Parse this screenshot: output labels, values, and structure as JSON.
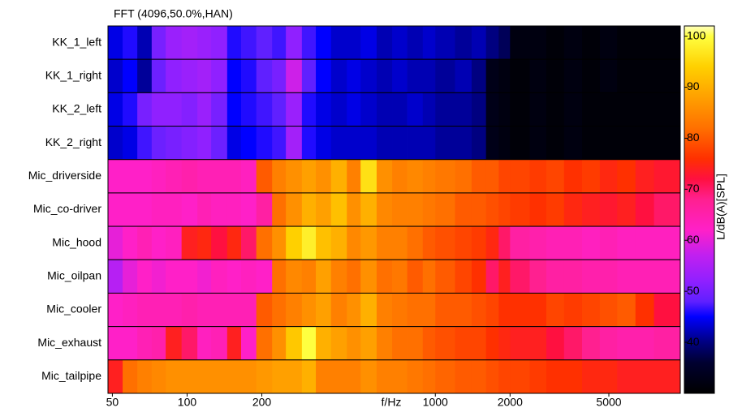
{
  "chart_data": {
    "type": "heatmap",
    "title": "FFT (4096,50.0%,HAN)",
    "x_label": "f/Hz",
    "colorbar_label": "L/dB(A)[SPL]",
    "log_x": true,
    "xlim": [
      48,
      9700
    ],
    "xticks": [
      50,
      100,
      200,
      1000,
      2000,
      5000
    ],
    "x_edges": [
      48,
      55,
      63,
      72,
      82,
      95,
      110,
      125,
      145,
      165,
      190,
      220,
      250,
      290,
      330,
      380,
      440,
      500,
      580,
      670,
      770,
      890,
      1000,
      1200,
      1400,
      1600,
      1800,
      2000,
      2400,
      2800,
      3300,
      3900,
      4600,
      5400,
      6400,
      7600,
      9700
    ],
    "clim": [
      30,
      102
    ],
    "cticks": [
      40,
      50,
      60,
      70,
      80,
      90,
      100
    ],
    "colormap": [
      {
        "value": 30,
        "color": "#000000"
      },
      {
        "value": 36,
        "color": "#000030"
      },
      {
        "value": 40,
        "color": "#000080"
      },
      {
        "value": 45,
        "color": "#0000ff"
      },
      {
        "value": 48,
        "color": "#6020ff"
      },
      {
        "value": 52,
        "color": "#9020ff"
      },
      {
        "value": 57,
        "color": "#c020f0"
      },
      {
        "value": 62,
        "color": "#ff20c8"
      },
      {
        "value": 68,
        "color": "#ff2090"
      },
      {
        "value": 72,
        "color": "#ff1040"
      },
      {
        "value": 76,
        "color": "#ff3000"
      },
      {
        "value": 82,
        "color": "#ff7000"
      },
      {
        "value": 88,
        "color": "#ffa000"
      },
      {
        "value": 94,
        "color": "#ffd000"
      },
      {
        "value": 100,
        "color": "#ffff40"
      },
      {
        "value": 102,
        "color": "#ffffc0"
      }
    ],
    "series": [
      {
        "name": "KK_1_left",
        "values": [
          44,
          46,
          42,
          50,
          53,
          54,
          53,
          52,
          46,
          47,
          48,
          47,
          52,
          47,
          45,
          43,
          43,
          44,
          42,
          43,
          42,
          43,
          42,
          41,
          42,
          40,
          38,
          32,
          32,
          31,
          32,
          31,
          32,
          31,
          31,
          31
        ]
      },
      {
        "name": "KK_1_right",
        "values": [
          43,
          45,
          41,
          49,
          52,
          53,
          54,
          52,
          45,
          46,
          48,
          50,
          58,
          48,
          45,
          43,
          44,
          43,
          42,
          43,
          42,
          42,
          41,
          42,
          40,
          33,
          32,
          31,
          32,
          31,
          32,
          31,
          32,
          31,
          31,
          31
        ]
      },
      {
        "name": "KK_2_left",
        "values": [
          44,
          46,
          50,
          52,
          52,
          51,
          53,
          50,
          45,
          46,
          47,
          48,
          53,
          46,
          44,
          43,
          44,
          43,
          42,
          42,
          43,
          42,
          41,
          41,
          40,
          33,
          32,
          31,
          32,
          31,
          32,
          31,
          31,
          31,
          31,
          31
        ]
      },
      {
        "name": "KK_2_right",
        "values": [
          43,
          44,
          47,
          49,
          50,
          51,
          52,
          49,
          44,
          45,
          46,
          47,
          54,
          46,
          44,
          43,
          43,
          43,
          42,
          42,
          42,
          42,
          41,
          41,
          40,
          33,
          32,
          31,
          32,
          31,
          32,
          31,
          31,
          31,
          31,
          31
        ]
      },
      {
        "name": "Mic_driverside",
        "values": [
          62,
          62,
          62,
          63,
          64,
          65,
          64,
          64,
          64,
          63,
          80,
          84,
          86,
          88,
          86,
          90,
          84,
          96,
          86,
          84,
          85,
          84,
          83,
          82,
          80,
          80,
          78,
          78,
          77,
          78,
          76,
          77,
          75,
          76,
          74,
          73
        ]
      },
      {
        "name": "Mic_co-driver",
        "values": [
          62,
          62,
          62,
          63,
          63,
          62,
          64,
          63,
          63,
          62,
          66,
          82,
          86,
          90,
          88,
          92,
          86,
          90,
          85,
          84,
          84,
          83,
          82,
          80,
          80,
          79,
          78,
          77,
          76,
          77,
          75,
          74,
          73,
          74,
          72,
          70
        ]
      },
      {
        "name": "Mic_hood",
        "values": [
          60,
          62,
          64,
          62,
          63,
          74,
          75,
          72,
          75,
          70,
          82,
          86,
          94,
          98,
          92,
          90,
          85,
          87,
          84,
          84,
          82,
          80,
          79,
          78,
          77,
          75,
          70,
          66,
          65,
          64,
          64,
          63,
          64,
          63,
          63,
          63
        ]
      },
      {
        "name": "Mic_oilpan",
        "values": [
          56,
          60,
          62,
          61,
          62,
          62,
          61,
          63,
          62,
          63,
          62,
          82,
          85,
          84,
          88,
          84,
          82,
          86,
          82,
          83,
          80,
          82,
          80,
          78,
          76,
          70,
          74,
          70,
          68,
          66,
          66,
          65,
          65,
          64,
          64,
          64
        ]
      },
      {
        "name": "Mic_cooler",
        "values": [
          62,
          63,
          64,
          64,
          64,
          65,
          64,
          64,
          64,
          64,
          80,
          82,
          84,
          86,
          88,
          84,
          86,
          90,
          84,
          83,
          82,
          82,
          80,
          80,
          79,
          78,
          76,
          76,
          76,
          78,
          77,
          78,
          79,
          80,
          76,
          72
        ]
      },
      {
        "name": "Mic_exhaust",
        "values": [
          62,
          62,
          64,
          65,
          74,
          70,
          63,
          64,
          74,
          62,
          82,
          86,
          93,
          100,
          90,
          88,
          86,
          88,
          84,
          82,
          82,
          80,
          79,
          78,
          78,
          76,
          75,
          74,
          74,
          72,
          70,
          68,
          66,
          65,
          65,
          66
        ]
      },
      {
        "name": "Mic_tailpipe",
        "values": [
          74,
          82,
          84,
          85,
          86,
          86,
          86,
          86,
          86,
          86,
          87,
          88,
          88,
          90,
          84,
          84,
          84,
          86,
          84,
          84,
          83,
          82,
          81,
          80,
          80,
          79,
          78,
          78,
          77,
          76,
          76,
          75,
          75,
          74,
          74,
          74
        ]
      }
    ]
  }
}
